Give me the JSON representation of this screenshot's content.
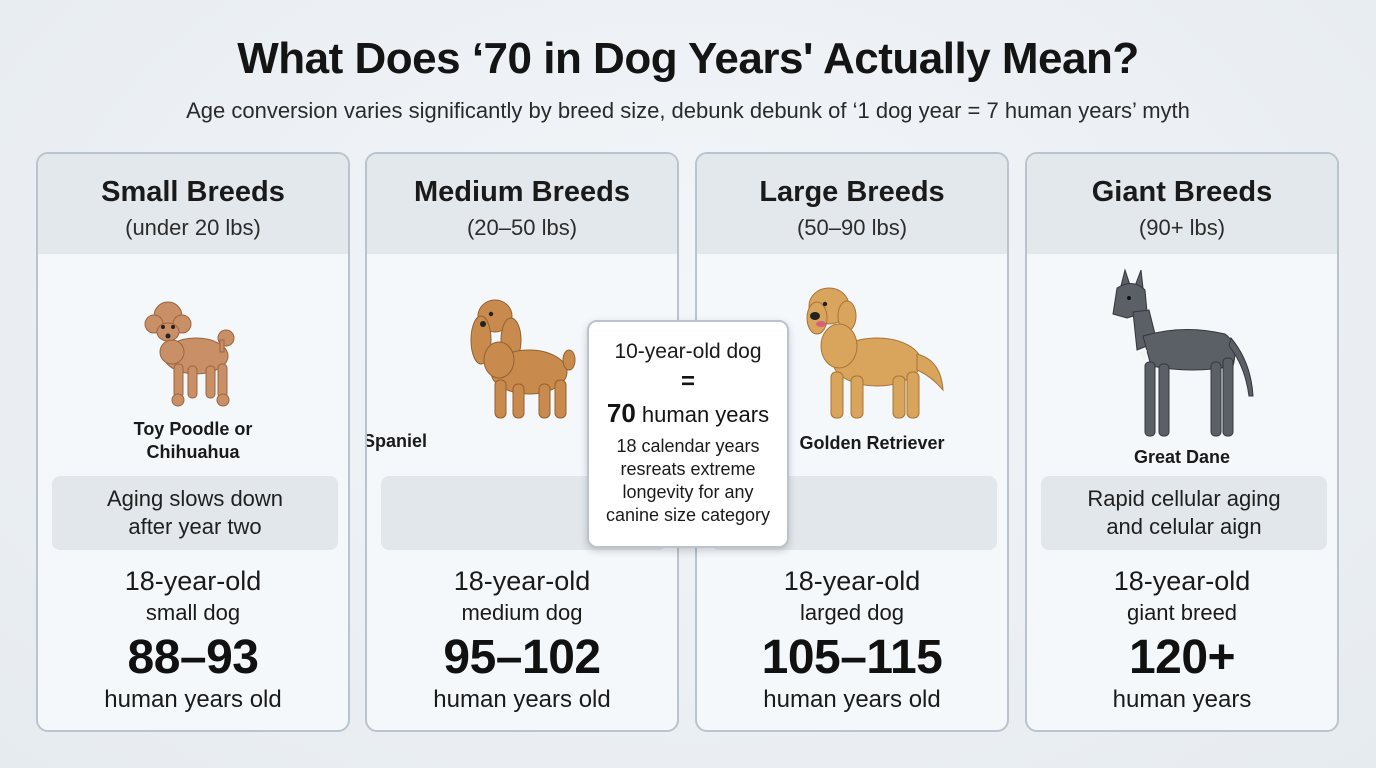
{
  "header": {
    "title": "What Does ‘70 in Dog Years' Actually Mean?",
    "subtitle": "Age conversion varies significantly by breed size, debunk debunk of ‘1 dog year = 7 human years’ myth"
  },
  "cards": [
    {
      "name": "Small Breeds",
      "range": "(under 20 lbs)",
      "breed_line1": "Toy Poodle or",
      "breed_line2": "Chihuahua",
      "note_line1": "Aging slows down",
      "note_line2": "after year two",
      "age_line1": "18-year-old",
      "age_line2": "small dog",
      "human_range": "88–93",
      "human_unit": "human years old",
      "dog_icon": "poodle-icon"
    },
    {
      "name": "Medium Breeds",
      "range": "(20–50 lbs)",
      "breed_line1": "Cocker Spaniel",
      "note_line1": "",
      "note_line2": "",
      "age_line1": "18-year-old",
      "age_line2": "medium dog",
      "human_range": "95–102",
      "human_unit": "human years old",
      "dog_icon": "cocker-spaniel-icon"
    },
    {
      "name": "Large Breeds",
      "range": "(50–90 lbs)",
      "breed_line1": "Golden Retriever",
      "note_line1": "",
      "note_line2": "",
      "age_line1": "18-year-old",
      "age_line2": "larged dog",
      "human_range": "105–115",
      "human_unit": "human years old",
      "dog_icon": "golden-retriever-icon"
    },
    {
      "name": "Giant Breeds",
      "range": "(90+ lbs)",
      "breed_line1": "Great Dane",
      "note_line1": "Rapid cellular aging",
      "note_line2": "and celular aign",
      "age_line1": "18-year-old",
      "age_line2": "giant breed",
      "human_range": "120+",
      "human_unit": "human years",
      "dog_icon": "great-dane-icon"
    }
  ],
  "callout": {
    "line1": "10-year-old dog",
    "equals": "=",
    "value": "70",
    "value_unit": "human years",
    "note_line1": "18 calendar years",
    "note_line2": "resreats extreme",
    "note_line3": "longevity for any",
    "note_line4": "canine size category"
  },
  "colors": {
    "background": "#e9eef2",
    "card_header": "#e3e8ec",
    "card_border": "#b9c4ce",
    "note_box": "#e2e7eb",
    "poodle": "#c99068",
    "spaniel": "#c98a4e",
    "retriever": "#d9a45c",
    "great_dane": "#5b6066"
  }
}
